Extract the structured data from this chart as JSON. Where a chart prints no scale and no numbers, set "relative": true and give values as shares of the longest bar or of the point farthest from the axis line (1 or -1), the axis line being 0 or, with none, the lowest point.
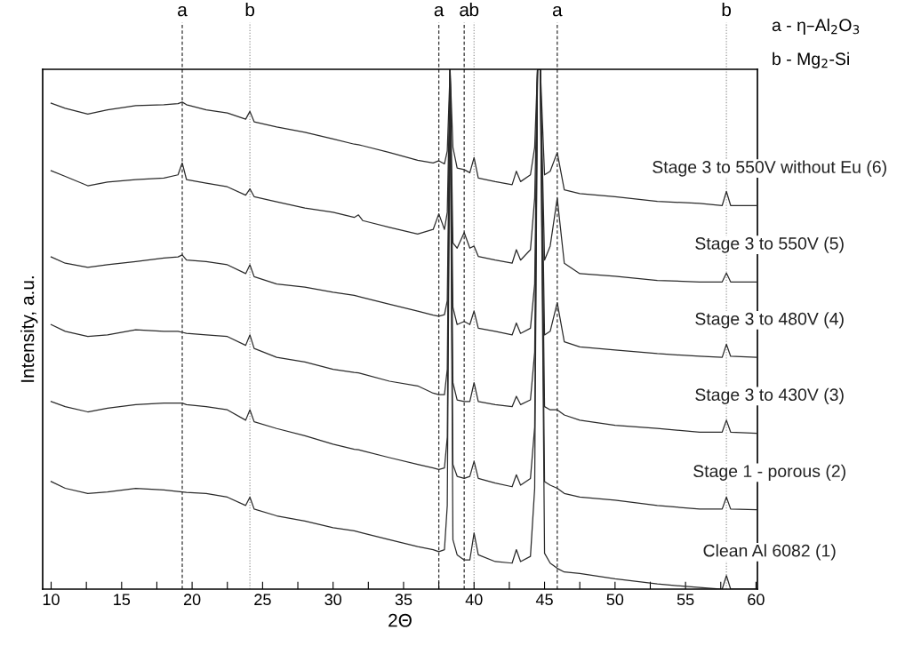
{
  "chart_data": {
    "type": "line",
    "relative": true,
    "xlabel": "2Θ",
    "ylabel": "Intensity, a.u.",
    "legend": false,
    "grid": false,
    "marker": "none",
    "line_style": "solid",
    "xlim": [
      9.4,
      60.1
    ],
    "xticks": [
      10,
      {
        "value": 12.5,
        "label": null
      },
      15,
      {
        "value": 17.5,
        "label": null
      },
      20,
      {
        "value": 22.5,
        "label": null
      },
      25,
      {
        "value": 27.5,
        "label": null
      },
      30,
      {
        "value": 32.5,
        "label": null
      },
      35,
      {
        "value": 37.5,
        "label": null
      },
      40,
      {
        "value": 42.5,
        "label": null
      },
      45,
      {
        "value": 47.5,
        "label": null
      },
      50,
      {
        "value": 52.5,
        "label": null
      },
      55,
      {
        "value": 57.5,
        "label": null
      },
      60
    ],
    "x": [
      10,
      11,
      12.6,
      14,
      16,
      18,
      19.0,
      19.3,
      19.6,
      21,
      22.5,
      23.8,
      24.1,
      24.4,
      26,
      28,
      30,
      31.5,
      31.8,
      32.1,
      34,
      36,
      37.1,
      37.5,
      37.9,
      38.1,
      38.3,
      38.5,
      38.8,
      39.3,
      39.7,
      40.0,
      40.3,
      41.5,
      42.7,
      43.0,
      43.3,
      44.0,
      44.3,
      44.5,
      44.7,
      45.0,
      45.4,
      45.9,
      46.4,
      47.5,
      50,
      53,
      56,
      57.6,
      57.9,
      58.2,
      60
    ],
    "series": [
      {
        "name": "Stage 3 to 550V without Eu (6)",
        "color": "#2a2a2a",
        "values": [
          0.935,
          0.925,
          0.914,
          0.922,
          0.93,
          0.932,
          0.934,
          0.937,
          0.932,
          0.922,
          0.916,
          0.904,
          0.919,
          0.899,
          0.889,
          0.879,
          0.866,
          0.856,
          0.855,
          0.853,
          0.84,
          0.825,
          0.82,
          0.824,
          0.818,
          0.843,
          1,
          0.85,
          0.81,
          0.807,
          0.801,
          0.83,
          0.791,
          0.784,
          0.778,
          0.804,
          0.784,
          0.797,
          0.85,
          1,
          1,
          0.797,
          0.804,
          0.84,
          0.768,
          0.761,
          0.755,
          0.746,
          0.742,
          0.738,
          0.765,
          0.738,
          0.738
        ]
      },
      {
        "name": "Stage 3 to 550V (5)",
        "color": "#2a2a2a",
        "values": [
          0.805,
          0.794,
          0.776,
          0.783,
          0.788,
          0.791,
          0.797,
          0.82,
          0.788,
          0.781,
          0.774,
          0.758,
          0.77,
          0.755,
          0.745,
          0.733,
          0.725,
          0.715,
          0.72,
          0.709,
          0.696,
          0.683,
          0.692,
          0.722,
          0.692,
          0.725,
          1,
          0.666,
          0.656,
          0.686,
          0.656,
          0.66,
          0.64,
          0.633,
          0.627,
          0.653,
          0.633,
          0.653,
          0.752,
          1,
          1,
          0.633,
          0.66,
          0.752,
          0.627,
          0.607,
          0.602,
          0.594,
          0.591,
          0.591,
          0.608,
          0.591,
          0.591
        ]
      },
      {
        "name": "Stage 3 to 480V (4)",
        "color": "#2a2a2a",
        "values": [
          0.639,
          0.627,
          0.619,
          0.624,
          0.63,
          0.637,
          0.639,
          0.643,
          0.633,
          0.63,
          0.624,
          0.607,
          0.624,
          0.601,
          0.587,
          0.581,
          0.571,
          0.565,
          0.563,
          0.561,
          0.548,
          0.535,
          0.527,
          0.525,
          0.528,
          0.555,
          1,
          0.542,
          0.509,
          0.515,
          0.509,
          0.535,
          0.502,
          0.496,
          0.489,
          0.512,
          0.492,
          0.502,
          0.587,
          1,
          1,
          0.489,
          0.496,
          0.551,
          0.476,
          0.466,
          0.46,
          0.453,
          0.448,
          0.446,
          0.471,
          0.448,
          0.446
        ]
      },
      {
        "name": "Stage 3 to 430V (3)",
        "color": "#2a2a2a",
        "values": [
          0.509,
          0.496,
          0.486,
          0.489,
          0.499,
          0.496,
          0.496,
          0.494,
          0.492,
          0.489,
          0.486,
          0.469,
          0.489,
          0.463,
          0.446,
          0.437,
          0.423,
          0.417,
          0.416,
          0.414,
          0.4,
          0.391,
          0.377,
          0.374,
          0.374,
          0.423,
          1,
          0.397,
          0.364,
          0.361,
          0.361,
          0.397,
          0.361,
          0.355,
          0.351,
          0.371,
          0.355,
          0.364,
          0.456,
          1,
          1,
          0.351,
          0.345,
          0.345,
          0.335,
          0.325,
          0.315,
          0.309,
          0.302,
          0.302,
          0.325,
          0.302,
          0.3
        ]
      },
      {
        "name": "Stage 1 - porous (2)",
        "color": "#2a2a2a",
        "values": [
          0.361,
          0.351,
          0.341,
          0.348,
          0.355,
          0.358,
          0.358,
          0.358,
          0.355,
          0.351,
          0.345,
          0.325,
          0.345,
          0.322,
          0.309,
          0.295,
          0.279,
          0.269,
          0.268,
          0.266,
          0.253,
          0.24,
          0.233,
          0.23,
          0.233,
          0.292,
          1,
          0.24,
          0.217,
          0.213,
          0.217,
          0.246,
          0.213,
          0.204,
          0.197,
          0.22,
          0.2,
          0.213,
          0.312,
          1,
          1,
          0.207,
          0.2,
          0.194,
          0.184,
          0.177,
          0.171,
          0.161,
          0.154,
          0.154,
          0.177,
          0.154,
          0.153
        ]
      },
      {
        "name": "Clean Al 6082 (1)",
        "color": "#2a2a2a",
        "values": [
          0.207,
          0.194,
          0.184,
          0.187,
          0.194,
          0.191,
          0.188,
          0.187,
          0.186,
          0.184,
          0.177,
          0.161,
          0.177,
          0.154,
          0.141,
          0.131,
          0.118,
          0.112,
          0.11,
          0.108,
          0.095,
          0.082,
          0.076,
          0.072,
          0.076,
          0.161,
          1,
          0.095,
          0.066,
          0.056,
          0.056,
          0.108,
          0.066,
          0.053,
          0.05,
          0.076,
          0.053,
          0.063,
          0.194,
          1,
          1,
          0.069,
          0.05,
          0.04,
          0.033,
          0.03,
          0.02,
          0.01,
          0.003,
          0,
          0.026,
          0,
          0
        ]
      }
    ],
    "ref_lines": [
      {
        "axis": "x",
        "value": 19.3,
        "label": "a",
        "line_style": "dashed",
        "color": "#333333"
      },
      {
        "axis": "x",
        "value": 24.1,
        "label": "b",
        "line_style": "dotted",
        "color": "#999999"
      },
      {
        "axis": "x",
        "value": 37.5,
        "label": "a",
        "line_style": "dashed",
        "color": "#333333"
      },
      {
        "axis": "x",
        "value": 39.3,
        "label": "a",
        "line_style": "dashed",
        "color": "#333333"
      },
      {
        "axis": "x",
        "value": 40.0,
        "label": "b",
        "line_style": "dotted",
        "color": "#999999"
      },
      {
        "axis": "x",
        "value": 45.9,
        "label": "a",
        "line_style": "dashed",
        "color": "#333333"
      },
      {
        "axis": "x",
        "value": 57.9,
        "label": "b",
        "line_style": "dotted",
        "color": "#999999"
      }
    ],
    "annotations": [
      "a - η–Al$_{2}$O$_{3}$",
      "b - Mg$_{2}$-Si"
    ]
  }
}
